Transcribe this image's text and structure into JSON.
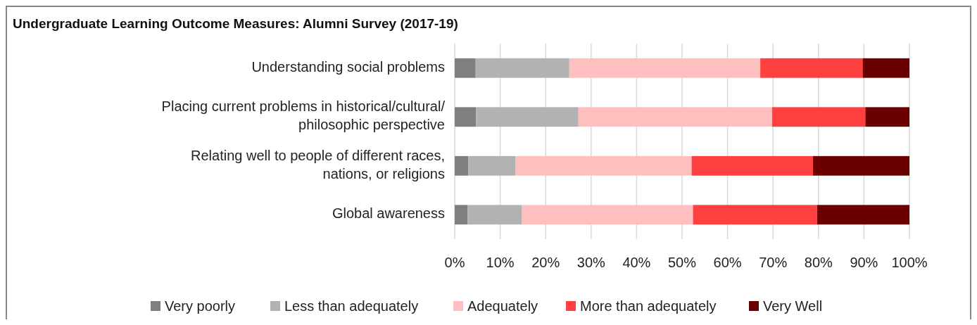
{
  "chart_data": {
    "type": "bar",
    "orientation": "horizontal",
    "stacked": true,
    "title": "Undergraduate Learning Outcome Measures: Alumni Survey (2017-19)",
    "categories": [
      "Understanding social problems",
      "Placing current problems in historical/cultural/philosophic perspective",
      "Relating well to people of different races, nations, or religions",
      "Global awareness"
    ],
    "series": [
      {
        "name": "Very poorly",
        "color": "#7f7f7f",
        "values": [
          4.6,
          4.7,
          3.0,
          2.8
        ]
      },
      {
        "name": "Less than adequately",
        "color": "#b2b2b2",
        "values": [
          20.6,
          22.5,
          10.4,
          12.0
        ]
      },
      {
        "name": "Adequately",
        "color": "#ffbfbf",
        "values": [
          42.0,
          42.6,
          38.7,
          37.6
        ]
      },
      {
        "name": "More than adequately",
        "color": "#ff4040",
        "values": [
          22.5,
          20.5,
          26.7,
          27.3
        ]
      },
      {
        "name": "Very Well",
        "color": "#6b0000",
        "values": [
          10.3,
          9.7,
          21.2,
          20.3
        ]
      }
    ],
    "xlim": [
      0,
      100
    ],
    "xticks": [
      {
        "value": 0,
        "label": "0%"
      },
      {
        "value": 10,
        "label": "10%"
      },
      {
        "value": 20,
        "label": "20%"
      },
      {
        "value": 30,
        "label": "30%"
      },
      {
        "value": 40,
        "label": "40%"
      },
      {
        "value": 50,
        "label": "50%"
      },
      {
        "value": 60,
        "label": "60%"
      },
      {
        "value": 70,
        "label": "70%"
      },
      {
        "value": 80,
        "label": "80%"
      },
      {
        "value": 90,
        "label": "90%"
      },
      {
        "value": 100,
        "label": "100%"
      }
    ],
    "grid": "x",
    "legend": "bottom"
  }
}
